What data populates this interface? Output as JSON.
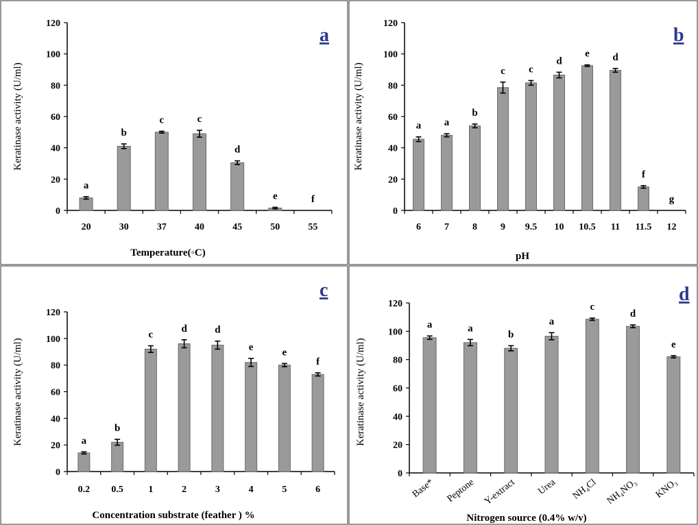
{
  "chart_data": [
    {
      "type": "bar",
      "panel": "a",
      "categories": [
        "20",
        "30",
        "37",
        "40",
        "45",
        "50",
        "55"
      ],
      "values": [
        8,
        41,
        50,
        49,
        30.5,
        1.5,
        0
      ],
      "errors": [
        0.8,
        1.5,
        0.6,
        2.2,
        1.2,
        0.5,
        0
      ],
      "significance": [
        "a",
        "b",
        "c",
        "c",
        "d",
        "e",
        "f"
      ],
      "xlabel": "Temperature(◦C)",
      "ylabel": "Keratinase activity (U/ml)",
      "ylim": [
        0,
        120
      ],
      "yticks": [
        0,
        20,
        40,
        60,
        80,
        100,
        120
      ]
    },
    {
      "type": "bar",
      "panel": "b",
      "categories": [
        "6",
        "7",
        "8",
        "9",
        "9.5",
        "10",
        "10.5",
        "11",
        "11.5",
        "12"
      ],
      "values": [
        45.5,
        48,
        54,
        78.5,
        81.5,
        86.5,
        92.5,
        89.5,
        15,
        0
      ],
      "errors": [
        1.5,
        1,
        1.2,
        3.5,
        1.5,
        1.8,
        0.5,
        1.2,
        0.8,
        0
      ],
      "significance": [
        "a",
        "a",
        "b",
        "c",
        "c",
        "d",
        "e",
        "d",
        "f",
        "g"
      ],
      "xlabel": "pH",
      "ylabel": "Keratinase activity (U/ml)",
      "ylim": [
        0,
        120
      ],
      "yticks": [
        0,
        20,
        40,
        60,
        80,
        100,
        120
      ]
    },
    {
      "type": "bar",
      "panel": "c",
      "categories": [
        "0.2",
        "0.5",
        "1",
        "2",
        "3",
        "4",
        "5",
        "6"
      ],
      "values": [
        14,
        22,
        92,
        96,
        95,
        82,
        80,
        73
      ],
      "errors": [
        0.8,
        2.2,
        2.5,
        3,
        3,
        3,
        1.2,
        1.2
      ],
      "significance": [
        "a",
        "b",
        "c",
        "d",
        "d",
        "e",
        "e",
        "f"
      ],
      "xlabel": "Concentration substrate (feather ) %",
      "ylabel": "Keratinase activity (U/ml)",
      "ylim": [
        0,
        120
      ],
      "yticks": [
        0,
        20,
        40,
        60,
        80,
        100,
        120
      ]
    },
    {
      "type": "bar",
      "panel": "d",
      "categories": [
        "Base*",
        "Peptone",
        "Y-extract",
        "Urea",
        "NH₄Cl",
        "NH₄NO₃",
        "KNO₃"
      ],
      "values": [
        95.5,
        92,
        88,
        96.5,
        108.5,
        103.5,
        82
      ],
      "errors": [
        1.2,
        2.2,
        1.8,
        2.5,
        0.8,
        1,
        0.8
      ],
      "significance": [
        "a",
        "a",
        "b",
        "a",
        "c",
        "d",
        "e"
      ],
      "xlabel": "Nitrogen source (0.4% w/v)",
      "ylabel": "Keratinase activity (U/ml)",
      "ylim": [
        0,
        120
      ],
      "yticks": [
        0,
        20,
        40,
        60,
        80,
        100,
        120
      ]
    }
  ]
}
